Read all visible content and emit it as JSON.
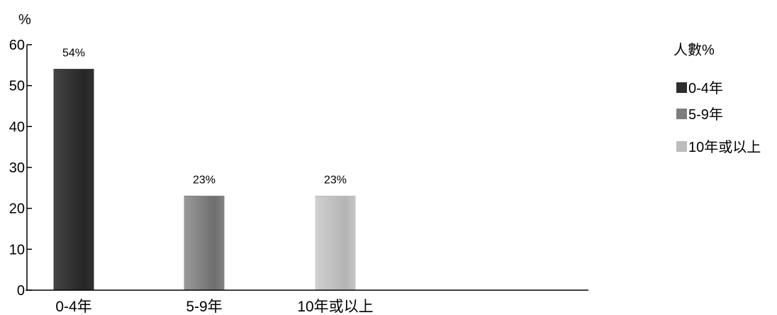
{
  "chart_data": {
    "type": "bar",
    "ylabel": "%",
    "ylim": [
      0,
      60
    ],
    "yticks": [
      0,
      10,
      20,
      30,
      40,
      50,
      60
    ],
    "categories": [
      "0-4年",
      "5-9年",
      "10年或以上"
    ],
    "series": [
      {
        "name": "人數%",
        "values": [
          54,
          23,
          23
        ],
        "data_labels": [
          "54%",
          "23%",
          "23%"
        ],
        "colors": [
          "#2e2e2e",
          "#7e7e7e",
          "#bcbcbc"
        ]
      }
    ],
    "legend": {
      "position": "right",
      "title": "人數%",
      "items": [
        {
          "label": "0-4年",
          "color": "#2e2e2e"
        },
        {
          "label": "5-9年",
          "color": "#7e7e7e"
        },
        {
          "label": "10年或以上",
          "color": "#bcbcbc"
        }
      ]
    },
    "grid": false
  }
}
